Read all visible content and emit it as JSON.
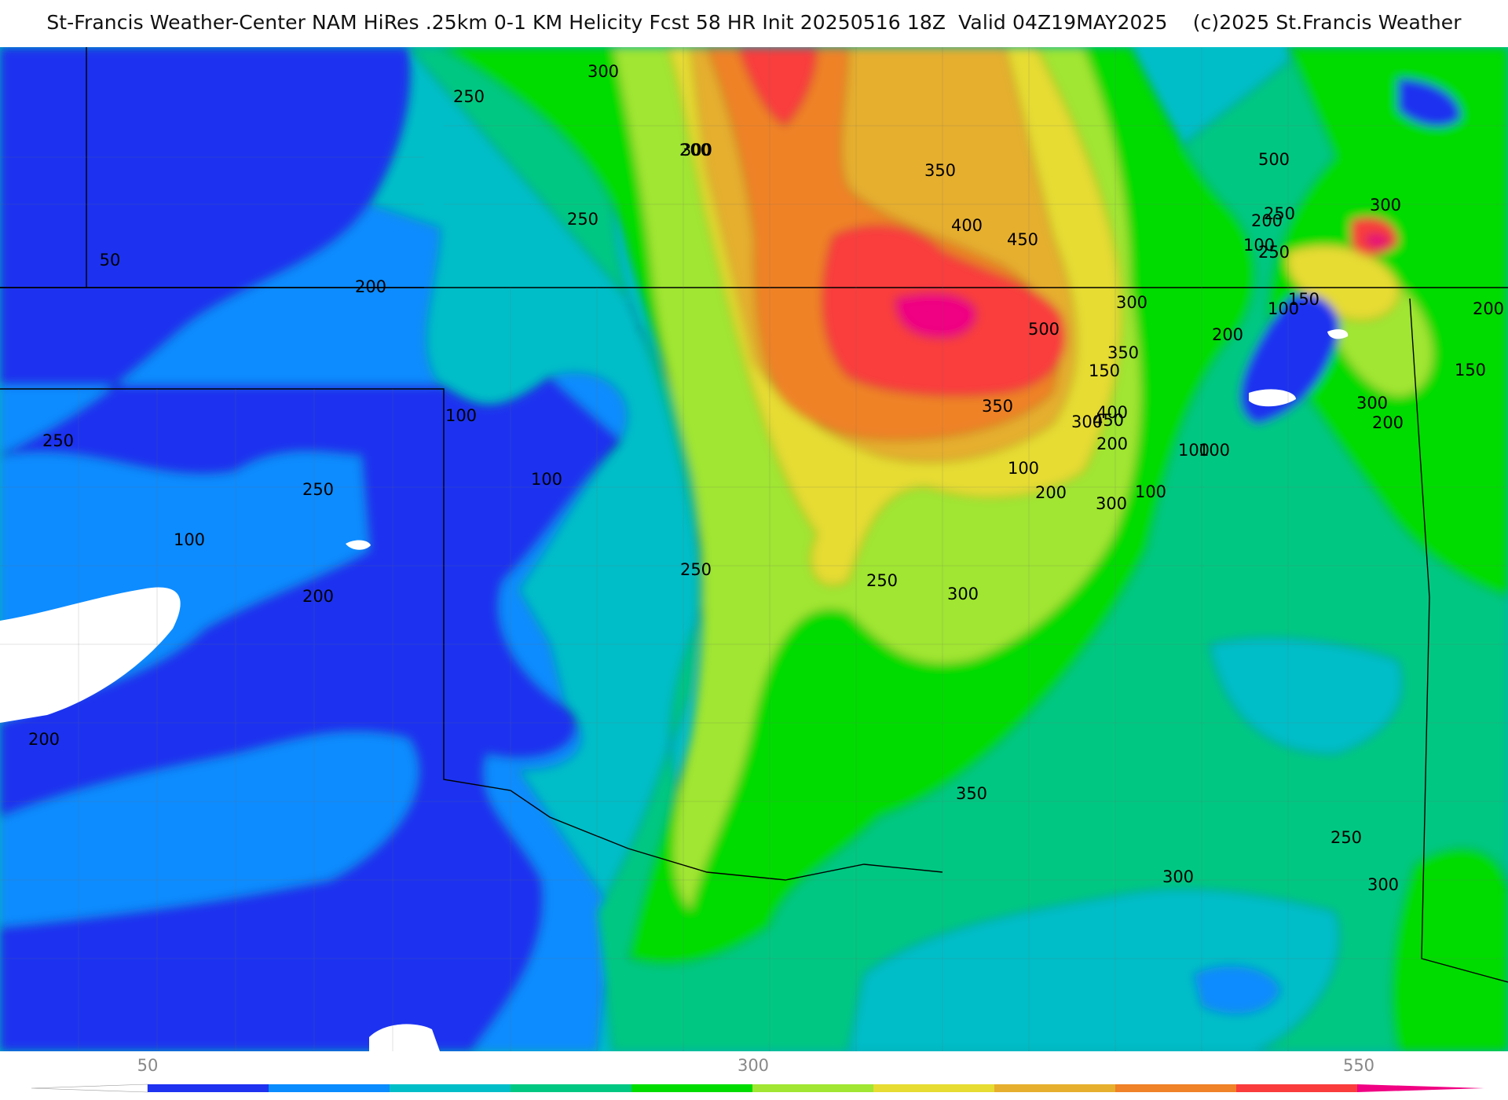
{
  "header": {
    "title": "St-Francis Weather-Center NAM HiRes .25km 0-1 KM Helicity Fcst 58 HR Init 20250516 18Z  Valid 04Z19MAY2025    (c)2025 St.Francis Weather"
  },
  "map": {
    "field": "0-1 KM Helicity",
    "contour_labels": [
      "50",
      "250",
      "300",
      "200",
      "250",
      "300",
      "350",
      "400",
      "450",
      "500",
      "250",
      "200",
      "300",
      "250",
      "100",
      "100",
      "150",
      "200",
      "500",
      "300",
      "350",
      "200",
      "150",
      "300",
      "100",
      "400",
      "450",
      "350",
      "200",
      "300",
      "100",
      "100",
      "100",
      "300",
      "250",
      "250",
      "100",
      "100",
      "200",
      "250",
      "100",
      "200",
      "250",
      "200",
      "250",
      "300",
      "200",
      "200",
      "150",
      "300",
      "350",
      "300"
    ]
  },
  "legend": {
    "ticks": [
      "50",
      "300",
      "550"
    ],
    "colors": [
      "#1e32f0",
      "#0a8cff",
      "#00bec8",
      "#00c882",
      "#00dc00",
      "#a0e632",
      "#e6dc32",
      "#e6af2d",
      "#f08228",
      "#fa3c3c",
      "#f00082"
    ]
  }
}
